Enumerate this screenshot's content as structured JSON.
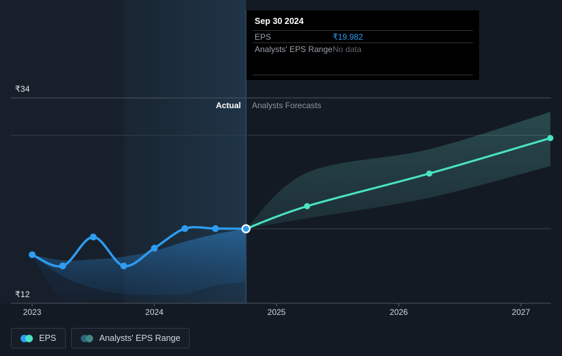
{
  "colors": {
    "background": "#131a24",
    "eps_actual": "#2e9cf1",
    "eps_forecast": "#4ae3c4",
    "grid_strong": "#4d5560",
    "grid_soft": "#333c47",
    "crosshair": "#3c4450",
    "divider": "#2c4b68"
  },
  "tooltip": {
    "title": "Sep 30 2024",
    "rows": [
      {
        "label": "EPS",
        "value": "₹19.982"
      },
      {
        "label": "Analysts' EPS Range",
        "value": "No data"
      }
    ]
  },
  "zones": {
    "actual": "Actual",
    "forecast": "Analysts Forecasts"
  },
  "y_axis": {
    "top": "₹34",
    "bottom": "₹12"
  },
  "legend": [
    {
      "label": "EPS",
      "dot1": "#2e9cf1",
      "dot2": "#4ae3c4"
    },
    {
      "label": "Analysts' EPS Range",
      "dot1": "#2d6480",
      "dot2": "#40897e"
    }
  ],
  "chart_data": {
    "type": "line",
    "title": "EPS — Actual vs Analysts Forecasts",
    "currency": "₹",
    "ylabel": "EPS",
    "ylim": [
      12,
      34
    ],
    "y_labels": {
      "top": "₹34",
      "bottom": "₹12"
    },
    "gridline_values": [
      34,
      30
    ],
    "x_ticks": [
      "2023",
      "2024",
      "2025",
      "2026",
      "2027"
    ],
    "x_tick_positions": [
      2023,
      2024,
      2025,
      2026,
      2027
    ],
    "divider_x": 2024.75,
    "highlight_range": [
      2023.75,
      2024.75
    ],
    "hover_point": {
      "date": "Sep 30 2024",
      "x": 2024.75,
      "value": 19.982
    },
    "legend_position": "bottom-left",
    "series": [
      {
        "name": "EPS (actual)",
        "color": "#2e9cf1",
        "x": [
          2023.0,
          2023.25,
          2023.5,
          2023.75,
          2024.0,
          2024.25,
          2024.5,
          2024.75
        ],
        "values": [
          17.2,
          16.0,
          19.1,
          16.0,
          17.9,
          20.0,
          20.0,
          19.982
        ]
      },
      {
        "name": "EPS (analysts forecast)",
        "color": "#4ae3c4",
        "x": [
          2024.75,
          2025.25,
          2026.25,
          2027.25
        ],
        "values": [
          19.982,
          22.4,
          25.9,
          29.7
        ]
      }
    ],
    "bands": [
      {
        "name": "analysts-eps-range-actual",
        "x": [
          2023.0,
          2023.25,
          2023.5,
          2023.75,
          2024.0,
          2024.25,
          2024.5,
          2024.75
        ],
        "top": [
          17.2,
          16.6,
          16.7,
          17.0,
          17.6,
          18.6,
          19.4,
          19.982
        ],
        "bottom": [
          17.2,
          14.9,
          13.6,
          13.0,
          12.9,
          13.0,
          13.9,
          14.3
        ]
      },
      {
        "name": "analysts-eps-range-forecast",
        "x": [
          2024.75,
          2025.25,
          2026.25,
          2027.25
        ],
        "top": [
          19.982,
          26.0,
          28.5,
          32.5
        ],
        "bottom": [
          19.982,
          21.1,
          23.3,
          26.7
        ]
      }
    ]
  }
}
